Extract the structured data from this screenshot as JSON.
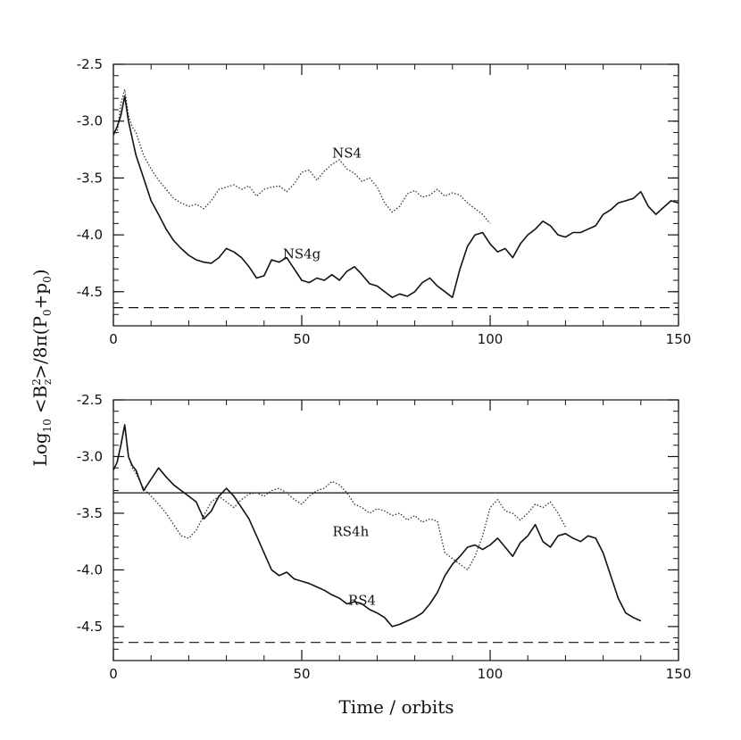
{
  "shared_ylabel": "Log10 <B_z^2>/8π(P0+p0)",
  "shared_ylabel_parts": {
    "log": "Log",
    "log_sub": "10",
    "numer_open": "<B",
    "numer_sup": "2",
    "numer_sub": "z",
    "numer_close": ">/8π(P",
    "p_sub": "0",
    "plus": "+p",
    "p2_sub": "0",
    "close": ")"
  },
  "shared_xlabel": "Time / orbits",
  "chart_data": [
    {
      "type": "line",
      "panel": "top",
      "xlim": [
        0,
        150
      ],
      "ylim": [
        -4.8,
        -2.5
      ],
      "xticks": [
        0,
        50,
        100,
        150
      ],
      "yticks": [
        -2.5,
        -3.0,
        -3.5,
        -4.0,
        -4.5
      ],
      "xtick_labels": [
        "0",
        "50",
        "100",
        "150"
      ],
      "ytick_labels": [
        "-2.5",
        "-3.0",
        "-3.5",
        "-4.0",
        "-4.5"
      ],
      "grid": false,
      "reference_lines": [
        {
          "y": -4.64,
          "style": "dashed"
        }
      ],
      "series": [
        {
          "name": "NS4",
          "style": "dotted",
          "color": "#333333",
          "label_anchor": [
            62,
            -3.28
          ],
          "x": [
            0,
            1,
            2,
            3,
            4,
            5,
            6,
            8,
            10,
            12,
            14,
            16,
            18,
            20,
            22,
            24,
            26,
            28,
            30,
            32,
            34,
            36,
            38,
            40,
            42,
            44,
            46,
            48,
            50,
            52,
            54,
            56,
            58,
            60,
            62,
            64,
            66,
            68,
            70,
            72,
            74,
            76,
            78,
            80,
            82,
            84,
            86,
            88,
            90,
            92,
            94,
            96,
            98,
            100
          ],
          "y": [
            -3.12,
            -3.1,
            -2.85,
            -2.72,
            -2.95,
            -3.05,
            -3.1,
            -3.3,
            -3.42,
            -3.52,
            -3.6,
            -3.68,
            -3.72,
            -3.75,
            -3.73,
            -3.77,
            -3.7,
            -3.6,
            -3.58,
            -3.56,
            -3.6,
            -3.57,
            -3.66,
            -3.6,
            -3.58,
            -3.57,
            -3.62,
            -3.55,
            -3.45,
            -3.43,
            -3.52,
            -3.44,
            -3.38,
            -3.34,
            -3.42,
            -3.46,
            -3.53,
            -3.5,
            -3.58,
            -3.72,
            -3.8,
            -3.75,
            -3.64,
            -3.61,
            -3.67,
            -3.65,
            -3.6,
            -3.66,
            -3.63,
            -3.65,
            -3.72,
            -3.77,
            -3.82,
            -3.9
          ]
        },
        {
          "name": "NS4g",
          "style": "solid",
          "color": "#111111",
          "label_anchor": [
            50,
            -4.17
          ],
          "x": [
            0,
            1,
            2,
            3,
            4,
            5,
            6,
            8,
            10,
            12,
            14,
            16,
            18,
            20,
            22,
            24,
            26,
            28,
            30,
            32,
            34,
            36,
            38,
            40,
            42,
            44,
            46,
            48,
            50,
            52,
            54,
            56,
            58,
            60,
            62,
            64,
            66,
            68,
            70,
            72,
            74,
            76,
            78,
            80,
            82,
            84,
            86,
            88,
            90,
            92,
            94,
            96,
            98,
            100,
            102,
            104,
            106,
            108,
            110,
            112,
            114,
            116,
            118,
            120,
            122,
            124,
            126,
            128,
            130,
            132,
            134,
            136,
            138,
            140,
            142,
            144,
            146,
            148,
            150
          ],
          "y": [
            -3.12,
            -3.05,
            -2.95,
            -2.78,
            -3.0,
            -3.15,
            -3.3,
            -3.5,
            -3.7,
            -3.82,
            -3.95,
            -4.05,
            -4.12,
            -4.18,
            -4.22,
            -4.24,
            -4.25,
            -4.2,
            -4.12,
            -4.15,
            -4.2,
            -4.28,
            -4.38,
            -4.36,
            -4.22,
            -4.24,
            -4.2,
            -4.3,
            -4.4,
            -4.42,
            -4.38,
            -4.4,
            -4.35,
            -4.4,
            -4.32,
            -4.28,
            -4.35,
            -4.43,
            -4.45,
            -4.5,
            -4.55,
            -4.52,
            -4.54,
            -4.5,
            -4.42,
            -4.38,
            -4.45,
            -4.5,
            -4.55,
            -4.3,
            -4.1,
            -4.0,
            -3.98,
            -4.08,
            -4.15,
            -4.12,
            -4.2,
            -4.08,
            -4.0,
            -3.95,
            -3.88,
            -3.92,
            -4.0,
            -4.02,
            -3.98,
            -3.98,
            -3.95,
            -3.92,
            -3.82,
            -3.78,
            -3.72,
            -3.7,
            -3.68,
            -3.62,
            -3.75,
            -3.82,
            -3.76,
            -3.7,
            -3.72
          ]
        }
      ]
    },
    {
      "type": "line",
      "panel": "bottom",
      "xlim": [
        0,
        150
      ],
      "ylim": [
        -4.8,
        -2.5
      ],
      "xticks": [
        0,
        50,
        100,
        150
      ],
      "yticks": [
        -2.5,
        -3.0,
        -3.5,
        -4.0,
        -4.5
      ],
      "xtick_labels": [
        "0",
        "50",
        "100",
        "150"
      ],
      "ytick_labels": [
        "-2.5",
        "-3.0",
        "-3.5",
        "-4.0",
        "-4.5"
      ],
      "grid": false,
      "reference_lines": [
        {
          "y": -3.32,
          "style": "solid"
        },
        {
          "y": -4.64,
          "style": "dashed"
        }
      ],
      "series": [
        {
          "name": "RS4h",
          "style": "dotted",
          "color": "#333333",
          "label_anchor": [
            63,
            -3.66
          ],
          "x": [
            0,
            1,
            2,
            3,
            4,
            5,
            6,
            8,
            10,
            12,
            14,
            16,
            18,
            20,
            22,
            24,
            26,
            28,
            30,
            32,
            34,
            36,
            38,
            40,
            42,
            44,
            46,
            48,
            50,
            52,
            54,
            56,
            58,
            60,
            62,
            64,
            66,
            68,
            70,
            72,
            74,
            76,
            78,
            80,
            82,
            84,
            86,
            88,
            90,
            92,
            94,
            96,
            98,
            100,
            102,
            104,
            106,
            108,
            110,
            112,
            114,
            116,
            118,
            120
          ],
          "y": [
            -3.12,
            -3.05,
            -2.9,
            -2.72,
            -3.0,
            -3.1,
            -3.15,
            -3.28,
            -3.35,
            -3.42,
            -3.5,
            -3.6,
            -3.7,
            -3.72,
            -3.65,
            -3.52,
            -3.4,
            -3.35,
            -3.4,
            -3.45,
            -3.38,
            -3.33,
            -3.32,
            -3.35,
            -3.3,
            -3.28,
            -3.32,
            -3.38,
            -3.42,
            -3.35,
            -3.3,
            -3.28,
            -3.22,
            -3.25,
            -3.32,
            -3.42,
            -3.45,
            -3.5,
            -3.46,
            -3.48,
            -3.52,
            -3.5,
            -3.56,
            -3.52,
            -3.58,
            -3.55,
            -3.57,
            -3.85,
            -3.9,
            -3.95,
            -4.0,
            -3.88,
            -3.7,
            -3.45,
            -3.38,
            -3.48,
            -3.5,
            -3.56,
            -3.5,
            -3.42,
            -3.45,
            -3.4,
            -3.5,
            -3.62
          ]
        },
        {
          "name": "RS4",
          "style": "solid",
          "color": "#111111",
          "label_anchor": [
            66,
            -4.27
          ],
          "x": [
            0,
            1,
            2,
            3,
            4,
            5,
            6,
            8,
            10,
            12,
            14,
            16,
            18,
            20,
            22,
            24,
            26,
            28,
            30,
            32,
            34,
            36,
            38,
            40,
            42,
            44,
            46,
            48,
            50,
            52,
            54,
            56,
            58,
            60,
            62,
            64,
            66,
            68,
            70,
            72,
            74,
            76,
            78,
            80,
            82,
            84,
            86,
            88,
            90,
            92,
            94,
            96,
            98,
            100,
            102,
            104,
            106,
            108,
            110,
            112,
            114,
            116,
            118,
            120,
            122,
            124,
            126,
            128,
            130,
            132,
            134,
            136,
            138,
            140
          ],
          "y": [
            -3.12,
            -3.05,
            -2.9,
            -2.72,
            -3.0,
            -3.08,
            -3.12,
            -3.3,
            -3.2,
            -3.1,
            -3.18,
            -3.25,
            -3.3,
            -3.35,
            -3.4,
            -3.55,
            -3.48,
            -3.35,
            -3.28,
            -3.35,
            -3.45,
            -3.55,
            -3.7,
            -3.85,
            -4.0,
            -4.05,
            -4.02,
            -4.08,
            -4.1,
            -4.12,
            -4.15,
            -4.18,
            -4.22,
            -4.25,
            -4.3,
            -4.28,
            -4.3,
            -4.35,
            -4.38,
            -4.42,
            -4.5,
            -4.48,
            -4.45,
            -4.42,
            -4.38,
            -4.3,
            -4.2,
            -4.05,
            -3.95,
            -3.88,
            -3.8,
            -3.78,
            -3.82,
            -3.78,
            -3.72,
            -3.8,
            -3.88,
            -3.76,
            -3.7,
            -3.6,
            -3.75,
            -3.8,
            -3.7,
            -3.68,
            -3.72,
            -3.75,
            -3.7,
            -3.72,
            -3.85,
            -4.05,
            -4.25,
            -4.38,
            -4.42,
            -4.45
          ]
        }
      ]
    }
  ]
}
